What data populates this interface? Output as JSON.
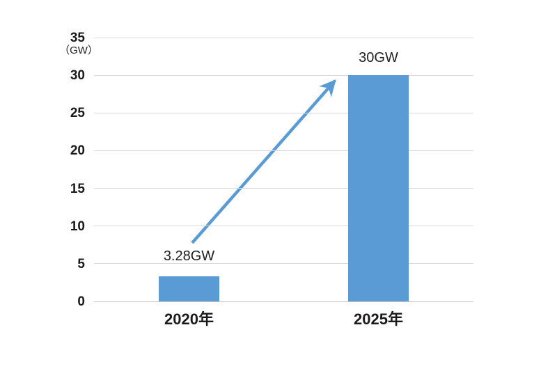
{
  "chart_data": {
    "type": "bar",
    "title": "",
    "unit_label": "（GW）",
    "categories": [
      "2020年",
      "2025年"
    ],
    "values": [
      3.28,
      30
    ],
    "value_labels": [
      "3.28GW",
      "30GW"
    ],
    "ylim": [
      0,
      35
    ],
    "yticks": [
      0,
      5,
      10,
      15,
      20,
      25,
      30,
      35
    ],
    "grid": true,
    "legend": "none",
    "bar_color": "#5B9BD5",
    "arrow_color": "#5B9BD5",
    "gridline_color": "#d9d9d9",
    "text_color": "#1a1a1a",
    "annotation": {
      "type": "growth-arrow",
      "from_label": "3.28GW",
      "to_label": "30GW"
    }
  }
}
